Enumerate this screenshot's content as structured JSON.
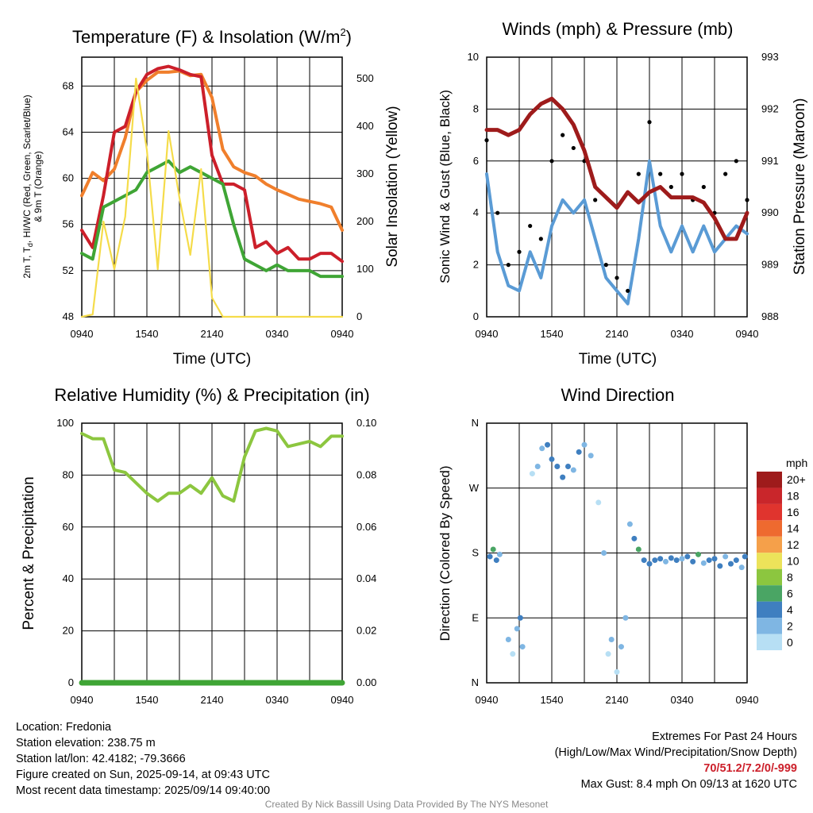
{
  "chart_data": [
    {
      "type": "line",
      "title": "Temperature (F) & Insolation (W/m²)",
      "xlabel": "Time (UTC)",
      "ylabel": "2m T, Td, HI/WC (Red, Green, Scarlet/Blue) & 9m T (Orange)",
      "ylabel2": "Solar Insolation (Yellow)",
      "x_ticks": [
        "0940",
        "1540",
        "2140",
        "0340",
        "0940"
      ],
      "y_ticks": [
        48,
        52,
        56,
        60,
        64,
        68
      ],
      "y2_ticks": [
        0,
        100,
        200,
        300,
        400,
        500
      ],
      "ylim": [
        48,
        70.5
      ],
      "y2lim": [
        0,
        545
      ],
      "x_hours": [
        0,
        1,
        2,
        3,
        4,
        5,
        6,
        7,
        8,
        9,
        10,
        11,
        12,
        13,
        14,
        15,
        16,
        17,
        18,
        19,
        20,
        21,
        22,
        23,
        24
      ],
      "series": [
        {
          "color": "#f07f2c",
          "axis": "left",
          "values": [
            58.5,
            60.5,
            59.8,
            60.8,
            63.5,
            67.5,
            68.5,
            69.2,
            69.2,
            69.3,
            68.9,
            69.0,
            67.0,
            62.5,
            61.0,
            60.5,
            60.2,
            59.5,
            59.0,
            58.6,
            58.2,
            58.0,
            57.8,
            57.5,
            55.5
          ]
        },
        {
          "color": "#cc1f2a",
          "axis": "left",
          "values": [
            55.5,
            54.0,
            58.5,
            64.0,
            64.5,
            67.5,
            69.0,
            69.5,
            69.7,
            69.4,
            69.0,
            68.8,
            62.0,
            59.5,
            59.5,
            59.0,
            54.0,
            54.5,
            53.5,
            54.0,
            53.0,
            53.0,
            53.5,
            53.5,
            52.8
          ]
        },
        {
          "color": "#3fa535",
          "axis": "left",
          "values": [
            53.5,
            53.0,
            57.5,
            58.0,
            58.5,
            59.0,
            60.5,
            61.0,
            61.5,
            60.5,
            61.0,
            60.5,
            60.0,
            59.5,
            56.0,
            53.0,
            52.5,
            52.0,
            52.5,
            52.0,
            52.0,
            52.0,
            51.5,
            51.5,
            51.5
          ]
        },
        {
          "color": "#f5dc4a",
          "axis": "right",
          "values": [
            0,
            5,
            200,
            100,
            210,
            500,
            350,
            100,
            390,
            250,
            130,
            310,
            40,
            0,
            0,
            0,
            0,
            0,
            0,
            0,
            0,
            0,
            0,
            0,
            0
          ]
        }
      ]
    },
    {
      "type": "line",
      "title": "Winds (mph) & Pressure (mb)",
      "xlabel": "Time (UTC)",
      "ylabel": "Sonic Wind & Gust (Blue, Black)",
      "ylabel2": "Station Pressure (Maroon)",
      "x_ticks": [
        "0940",
        "1540",
        "2140",
        "0340",
        "0940"
      ],
      "y_ticks": [
        0,
        2,
        4,
        6,
        8,
        10
      ],
      "y2_ticks": [
        988,
        989,
        990,
        991,
        992,
        993
      ],
      "ylim": [
        0,
        10
      ],
      "y2lim": [
        988,
        993
      ],
      "x_hours": [
        0,
        1,
        2,
        3,
        4,
        5,
        6,
        7,
        8,
        9,
        10,
        11,
        12,
        13,
        14,
        15,
        16,
        17,
        18,
        19,
        20,
        21,
        22,
        23,
        24
      ],
      "series": [
        {
          "color": "#5a9bd5",
          "axis": "left",
          "kind": "line",
          "values": [
            5.5,
            2.5,
            1.2,
            1.0,
            2.5,
            1.5,
            3.5,
            4.5,
            4.0,
            4.5,
            3.0,
            1.5,
            1.0,
            0.5,
            3.0,
            6.0,
            3.5,
            2.5,
            3.5,
            2.5,
            3.5,
            2.5,
            3.0,
            3.5,
            3.2
          ]
        },
        {
          "color": "#000000",
          "axis": "left",
          "kind": "points",
          "values": [
            6.8,
            4.0,
            2.0,
            2.5,
            3.5,
            3.0,
            6.0,
            7.0,
            6.5,
            6.0,
            4.5,
            2.0,
            1.5,
            1.0,
            5.5,
            7.5,
            5.5,
            5.0,
            5.5,
            4.5,
            5.0,
            4.0,
            5.5,
            6.0,
            4.5
          ]
        },
        {
          "color": "#9e1b1b",
          "axis": "right",
          "kind": "line",
          "values": [
            991.6,
            991.6,
            991.5,
            991.6,
            991.9,
            992.1,
            992.2,
            992.0,
            991.7,
            991.2,
            990.5,
            990.3,
            990.1,
            990.4,
            990.2,
            990.4,
            990.5,
            990.3,
            990.3,
            990.3,
            990.2,
            989.9,
            989.5,
            989.5,
            990.0
          ]
        }
      ]
    },
    {
      "type": "line",
      "title": "Relative Humidity (%) & Precipitation (in)",
      "ylabel": "Percent & Precipitation",
      "x_ticks": [
        "0940",
        "1540",
        "2140",
        "0340",
        "0940"
      ],
      "y_ticks": [
        0,
        20,
        40,
        60,
        80,
        100
      ],
      "y2_ticks": [
        "0.00",
        "0.02",
        "0.04",
        "0.06",
        "0.08",
        "0.10"
      ],
      "ylim": [
        0,
        100
      ],
      "y2lim": [
        0,
        0.1
      ],
      "x_hours": [
        0,
        1,
        2,
        3,
        4,
        5,
        6,
        7,
        8,
        9,
        10,
        11,
        12,
        13,
        14,
        15,
        16,
        17,
        18,
        19,
        20,
        21,
        22,
        23,
        24
      ],
      "series": [
        {
          "color": "#8cc63f",
          "axis": "left",
          "values": [
            96,
            94,
            94,
            82,
            81,
            77,
            73,
            70,
            73,
            73,
            76,
            73,
            79,
            72,
            70,
            87,
            97,
            98,
            97,
            91,
            92,
            93,
            91,
            95,
            95
          ]
        },
        {
          "color": "#3fa535",
          "axis": "left",
          "values": [
            0,
            0,
            0,
            0,
            0,
            0,
            0,
            0,
            0,
            0,
            0,
            0,
            0,
            0,
            0,
            0,
            0,
            0,
            0,
            0,
            0,
            0,
            0,
            0,
            0
          ]
        }
      ]
    },
    {
      "type": "scatter",
      "title": "Wind Direction",
      "ylabel": "Direction (Colored By Speed)",
      "x_ticks": [
        "0940",
        "1540",
        "2140",
        "0340",
        "0940"
      ],
      "y_ticks": [
        "N",
        "E",
        "S",
        "W",
        "N"
      ],
      "ylim": [
        0,
        360
      ],
      "points": [
        {
          "x": 0.3,
          "y": 175,
          "s": 4
        },
        {
          "x": 0.6,
          "y": 185,
          "s": 6
        },
        {
          "x": 0.9,
          "y": 170,
          "s": 4
        },
        {
          "x": 1.2,
          "y": 178,
          "s": 3
        },
        {
          "x": 2.0,
          "y": 60,
          "s": 2
        },
        {
          "x": 2.4,
          "y": 40,
          "s": 1
        },
        {
          "x": 2.8,
          "y": 75,
          "s": 3
        },
        {
          "x": 3.1,
          "y": 90,
          "s": 4
        },
        {
          "x": 3.3,
          "y": 50,
          "s": 2
        },
        {
          "x": 4.2,
          "y": 290,
          "s": 1
        },
        {
          "x": 4.7,
          "y": 300,
          "s": 2
        },
        {
          "x": 5.1,
          "y": 325,
          "s": 3
        },
        {
          "x": 5.6,
          "y": 330,
          "s": 4
        },
        {
          "x": 6.0,
          "y": 310,
          "s": 4
        },
        {
          "x": 6.5,
          "y": 300,
          "s": 5
        },
        {
          "x": 7.0,
          "y": 285,
          "s": 4
        },
        {
          "x": 7.5,
          "y": 300,
          "s": 4
        },
        {
          "x": 8.0,
          "y": 295,
          "s": 3
        },
        {
          "x": 8.5,
          "y": 320,
          "s": 4
        },
        {
          "x": 9.0,
          "y": 330,
          "s": 3
        },
        {
          "x": 9.6,
          "y": 315,
          "s": 2
        },
        {
          "x": 10.3,
          "y": 250,
          "s": 1
        },
        {
          "x": 10.8,
          "y": 180,
          "s": 2
        },
        {
          "x": 11.2,
          "y": 40,
          "s": 1
        },
        {
          "x": 11.5,
          "y": 60,
          "s": 2
        },
        {
          "x": 12.0,
          "y": 15,
          "s": 1
        },
        {
          "x": 12.4,
          "y": 50,
          "s": 3
        },
        {
          "x": 12.8,
          "y": 90,
          "s": 2
        },
        {
          "x": 13.2,
          "y": 220,
          "s": 3
        },
        {
          "x": 13.6,
          "y": 200,
          "s": 4
        },
        {
          "x": 14.0,
          "y": 185,
          "s": 6
        },
        {
          "x": 14.5,
          "y": 170,
          "s": 4
        },
        {
          "x": 15.0,
          "y": 165,
          "s": 4
        },
        {
          "x": 15.5,
          "y": 170,
          "s": 5
        },
        {
          "x": 16.0,
          "y": 172,
          "s": 4
        },
        {
          "x": 16.5,
          "y": 168,
          "s": 3
        },
        {
          "x": 17.0,
          "y": 173,
          "s": 4
        },
        {
          "x": 17.5,
          "y": 170,
          "s": 4
        },
        {
          "x": 18.0,
          "y": 172,
          "s": 3
        },
        {
          "x": 18.5,
          "y": 175,
          "s": 4
        },
        {
          "x": 19.0,
          "y": 168,
          "s": 4
        },
        {
          "x": 19.5,
          "y": 178,
          "s": 6
        },
        {
          "x": 20.0,
          "y": 166,
          "s": 3
        },
        {
          "x": 20.5,
          "y": 170,
          "s": 4
        },
        {
          "x": 21.0,
          "y": 172,
          "s": 4
        },
        {
          "x": 21.5,
          "y": 162,
          "s": 4
        },
        {
          "x": 22.0,
          "y": 175,
          "s": 3
        },
        {
          "x": 22.5,
          "y": 165,
          "s": 4
        },
        {
          "x": 23.0,
          "y": 170,
          "s": 4
        },
        {
          "x": 23.5,
          "y": 160,
          "s": 3
        },
        {
          "x": 23.8,
          "y": 175,
          "s": 4
        }
      ],
      "colorbar": {
        "unit": "mph",
        "labels": [
          "20+",
          "18",
          "16",
          "14",
          "12",
          "10",
          "8",
          "6",
          "4",
          "2",
          "0"
        ],
        "colors": [
          "#9e1b1b",
          "#c9262b",
          "#e0342e",
          "#ee6a2f",
          "#f5a04a",
          "#ece35a",
          "#8cc63f",
          "#4aa564",
          "#3f7fc0",
          "#7fb6e3",
          "#b7dff4"
        ]
      }
    }
  ],
  "info": {
    "location": "Location: Fredonia",
    "elevation": "Station elevation: 238.75 m",
    "latlon": "Station lat/lon: 42.4182; -79.3666",
    "created": "Figure created on Sun, 2025-09-14, at 09:43 UTC",
    "recent": "Most recent data timestamp: 2025/09/14 09:40:00"
  },
  "extremes": {
    "heading": "Extremes For Past 24 Hours",
    "subheading": "(High/Low/Max Wind/Precipitation/Snow Depth)",
    "values": "70/51.2/7.2/0/-999",
    "gust": "Max Gust: 8.4 mph On 09/13 at 1620 UTC"
  },
  "credit": "Created By Nick Bassill Using Data Provided By The NYS Mesonet"
}
